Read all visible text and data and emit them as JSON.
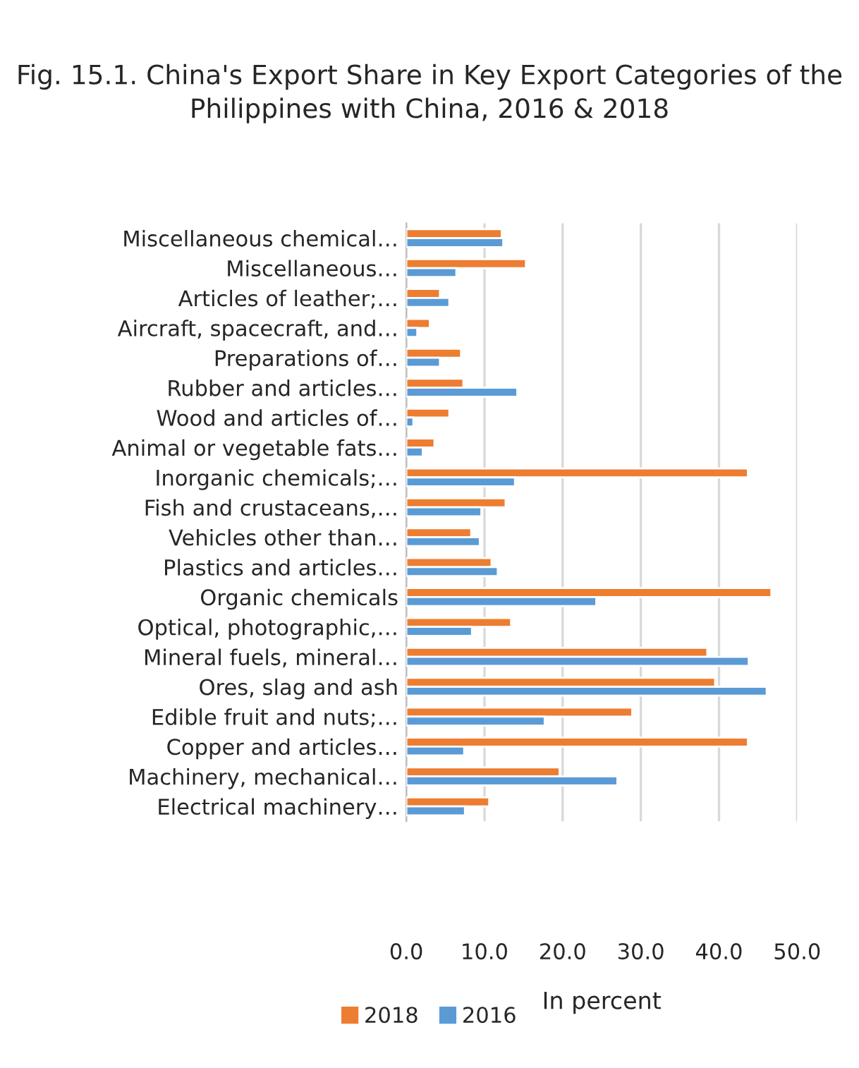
{
  "chart_data": {
    "type": "bar",
    "orientation": "horizontal",
    "title": "Fig. 15.1. China's Export Share in Key Export Categories of the Philippines with China, 2016 & 2018",
    "xlabel": "In percent",
    "categories": [
      "Miscellaneous chemical…",
      "Miscellaneous…",
      "Articles of leather;…",
      "Aircraft, spacecraft, and…",
      "Preparations of…",
      "Rubber and articles…",
      "Wood and articles of…",
      "Animal or vegetable fats…",
      "Inorganic chemicals;…",
      "Fish and crustaceans,…",
      "Vehicles other than…",
      "Plastics and articles…",
      "Organic chemicals",
      "Optical, photographic,…",
      "Mineral fuels, mineral…",
      "Ores, slag and ash",
      "Edible fruit and nuts;…",
      "Copper and articles…",
      "Machinery, mechanical…",
      "Electrical machinery…"
    ],
    "series": [
      {
        "name": "2018",
        "color": "#ed7d31",
        "values": [
          12.2,
          15.3,
          4.3,
          3.0,
          7.0,
          7.3,
          5.5,
          3.6,
          43.7,
          12.7,
          8.3,
          10.9,
          46.7,
          13.4,
          38.5,
          39.5,
          28.9,
          43.7,
          19.6,
          10.6
        ]
      },
      {
        "name": "2016",
        "color": "#5b9bd5",
        "values": [
          12.4,
          6.4,
          5.5,
          1.4,
          4.3,
          14.2,
          0.9,
          2.1,
          13.9,
          9.6,
          9.4,
          11.7,
          24.3,
          8.4,
          43.8,
          46.1,
          17.7,
          7.4,
          27.0,
          7.5
        ]
      }
    ],
    "xlim": [
      0,
      50
    ],
    "xticks": [
      {
        "value": 0,
        "label": "0.0"
      },
      {
        "value": 10,
        "label": "10.0"
      },
      {
        "value": 20,
        "label": "20.0"
      },
      {
        "value": 30,
        "label": "30.0"
      },
      {
        "value": 40,
        "label": "40.0"
      },
      {
        "value": 50,
        "label": "50.0"
      }
    ],
    "grid": "x",
    "legend": "bottom"
  }
}
